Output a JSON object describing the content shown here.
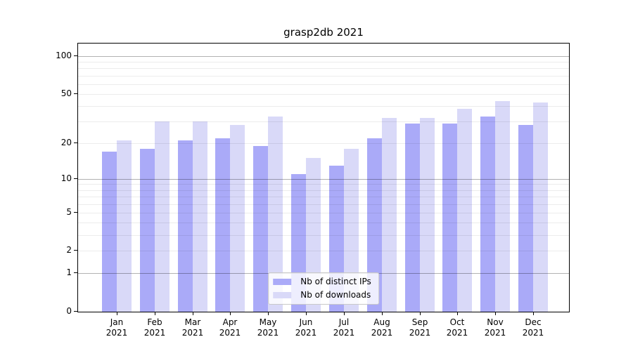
{
  "chart_data": {
    "type": "bar",
    "title": "grasp2db 2021",
    "categories": [
      "Jan 2021",
      "Feb 2021",
      "Mar 2021",
      "Apr 2021",
      "May 2021",
      "Jun 2021",
      "Jul 2021",
      "Aug 2021",
      "Sep 2021",
      "Oct 2021",
      "Nov 2021",
      "Dec 2021"
    ],
    "series": [
      {
        "name": "Nb of distinct IPs",
        "color": "#aaaaf8",
        "values": [
          17,
          18,
          21,
          22,
          19,
          11,
          13,
          22,
          29,
          29,
          33,
          28
        ]
      },
      {
        "name": "Nb of downloads",
        "color": "#d9d9f8",
        "values": [
          21,
          30,
          30,
          28,
          33,
          15,
          18,
          32,
          32,
          38,
          44,
          43
        ]
      }
    ],
    "xlabel": "",
    "ylabel": "",
    "yscale": "log1p",
    "yticks": [
      0,
      1,
      2,
      5,
      10,
      20,
      50,
      100
    ],
    "major_grid_values": [
      1,
      10,
      100
    ],
    "ylim": [
      0,
      126
    ],
    "grid": true,
    "legend_position": "lower center"
  }
}
